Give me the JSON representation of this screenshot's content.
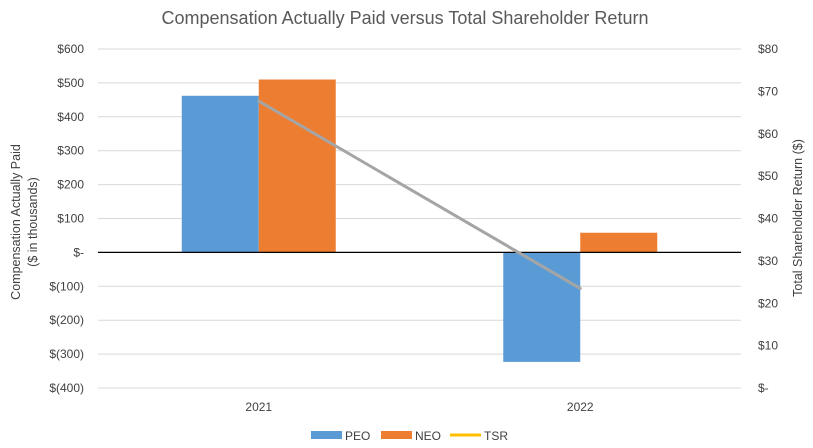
{
  "chart_data": {
    "type": "bar",
    "title": "Compensation Actually Paid versus Total Shareholder Return",
    "categories": [
      "2021",
      "2022"
    ],
    "series": [
      {
        "name": "PEO",
        "kind": "bar",
        "axis": "left",
        "color": "#5B9BD5",
        "values": [
          462,
          -323
        ]
      },
      {
        "name": "NEO",
        "kind": "bar",
        "axis": "left",
        "color": "#ED7D31",
        "values": [
          510,
          58
        ]
      },
      {
        "name": "TSR",
        "kind": "line",
        "axis": "right",
        "color": "#A5A5A5",
        "legend_color": "#FFC000",
        "values": [
          67.7,
          23.5
        ]
      }
    ],
    "left_axis": {
      "label_line1": "Compensation Actually Paid",
      "label_line2": "($ in thousands)",
      "min": -400,
      "max": 600,
      "step": 100,
      "tick_labels": [
        "$(400)",
        "$(300)",
        "$(200)",
        "$(100)",
        "$-",
        "$100",
        "$200",
        "$300",
        "$400",
        "$500",
        "$600"
      ]
    },
    "right_axis": {
      "label": "Total Shareholder Return ($)",
      "min": 0,
      "max": 80,
      "step": 10,
      "tick_labels": [
        "$-",
        "$10",
        "$20",
        "$30",
        "$40",
        "$50",
        "$60",
        "$70",
        "$80"
      ]
    },
    "grid": true,
    "legend_position": "bottom"
  }
}
